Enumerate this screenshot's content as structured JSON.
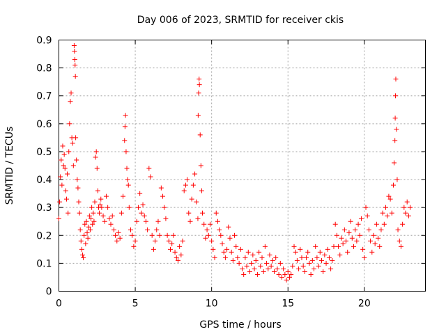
{
  "chart_data": {
    "type": "scatter",
    "title": "Day 006 of 2023, SRMTID for receiver ckis",
    "xlabel": "GPS time / hours",
    "ylabel": "SRMTID / TECUs",
    "xlim": [
      0,
      24
    ],
    "ylim": [
      0,
      0.9
    ],
    "xticks": [
      0,
      5,
      10,
      15,
      20
    ],
    "xtick_labels": [
      "0",
      "5",
      "10",
      "15",
      "20"
    ],
    "yticks": [
      0,
      0.1,
      0.2,
      0.3,
      0.4,
      0.5,
      0.6,
      0.7,
      0.8,
      0.9
    ],
    "ytick_labels": [
      "0",
      "0.1",
      "0.2",
      "0.3",
      "0.4",
      "0.5",
      "0.6",
      "0.7",
      "0.8",
      "0.9"
    ],
    "grid": true,
    "marker": "+",
    "marker_color": "#ff0000",
    "series": [
      {
        "name": "SRMTID",
        "points": [
          [
            0.0,
            0.26
          ],
          [
            0.05,
            0.32
          ],
          [
            0.1,
            0.41
          ],
          [
            0.15,
            0.47
          ],
          [
            0.2,
            0.38
          ],
          [
            0.25,
            0.52
          ],
          [
            0.3,
            0.45
          ],
          [
            0.35,
            0.49
          ],
          [
            0.4,
            0.44
          ],
          [
            0.45,
            0.36
          ],
          [
            0.5,
            0.33
          ],
          [
            0.55,
            0.42
          ],
          [
            0.6,
            0.28
          ],
          [
            0.65,
            0.5
          ],
          [
            0.7,
            0.6
          ],
          [
            0.75,
            0.68
          ],
          [
            0.8,
            0.71
          ],
          [
            0.85,
            0.55
          ],
          [
            0.9,
            0.53
          ],
          [
            0.95,
            0.45
          ],
          [
            1.0,
            0.88
          ],
          [
            1.02,
            0.86
          ],
          [
            1.04,
            0.83
          ],
          [
            1.06,
            0.81
          ],
          [
            1.08,
            0.77
          ],
          [
            1.1,
            0.55
          ],
          [
            1.15,
            0.47
          ],
          [
            1.2,
            0.4
          ],
          [
            1.25,
            0.37
          ],
          [
            1.3,
            0.32
          ],
          [
            1.35,
            0.28
          ],
          [
            1.4,
            0.22
          ],
          [
            1.45,
            0.18
          ],
          [
            1.5,
            0.15
          ],
          [
            1.55,
            0.13
          ],
          [
            1.6,
            0.12
          ],
          [
            1.65,
            0.2
          ],
          [
            1.7,
            0.24
          ],
          [
            1.75,
            0.17
          ],
          [
            1.8,
            0.25
          ],
          [
            1.85,
            0.21
          ],
          [
            1.9,
            0.19
          ],
          [
            1.95,
            0.23
          ],
          [
            2.0,
            0.27
          ],
          [
            2.05,
            0.22
          ],
          [
            2.1,
            0.26
          ],
          [
            2.15,
            0.3
          ],
          [
            2.2,
            0.24
          ],
          [
            2.25,
            0.28
          ],
          [
            2.3,
            0.25
          ],
          [
            2.35,
            0.32
          ],
          [
            2.4,
            0.48
          ],
          [
            2.45,
            0.5
          ],
          [
            2.5,
            0.44
          ],
          [
            2.55,
            0.36
          ],
          [
            2.6,
            0.3
          ],
          [
            2.65,
            0.28
          ],
          [
            2.7,
            0.31
          ],
          [
            2.75,
            0.33
          ],
          [
            2.8,
            0.3
          ],
          [
            2.9,
            0.27
          ],
          [
            3.0,
            0.25
          ],
          [
            3.1,
            0.34
          ],
          [
            3.2,
            0.3
          ],
          [
            3.3,
            0.26
          ],
          [
            3.4,
            0.24
          ],
          [
            3.5,
            0.27
          ],
          [
            3.6,
            0.22
          ],
          [
            3.7,
            0.2
          ],
          [
            3.8,
            0.18
          ],
          [
            3.9,
            0.21
          ],
          [
            4.0,
            0.19
          ],
          [
            4.1,
            0.28
          ],
          [
            4.2,
            0.34
          ],
          [
            4.3,
            0.54
          ],
          [
            4.33,
            0.59
          ],
          [
            4.36,
            0.63
          ],
          [
            4.4,
            0.5
          ],
          [
            4.45,
            0.44
          ],
          [
            4.5,
            0.4
          ],
          [
            4.55,
            0.38
          ],
          [
            4.6,
            0.3
          ],
          [
            4.7,
            0.22
          ],
          [
            4.8,
            0.2
          ],
          [
            4.9,
            0.16
          ],
          [
            5.0,
            0.18
          ],
          [
            5.1,
            0.25
          ],
          [
            5.2,
            0.3
          ],
          [
            5.3,
            0.35
          ],
          [
            5.4,
            0.28
          ],
          [
            5.5,
            0.31
          ],
          [
            5.6,
            0.27
          ],
          [
            5.7,
            0.25
          ],
          [
            5.8,
            0.22
          ],
          [
            5.9,
            0.44
          ],
          [
            6.0,
            0.41
          ],
          [
            6.1,
            0.2
          ],
          [
            6.2,
            0.15
          ],
          [
            6.3,
            0.18
          ],
          [
            6.4,
            0.22
          ],
          [
            6.5,
            0.25
          ],
          [
            6.6,
            0.2
          ],
          [
            6.7,
            0.37
          ],
          [
            6.8,
            0.34
          ],
          [
            6.9,
            0.3
          ],
          [
            7.0,
            0.26
          ],
          [
            7.1,
            0.2
          ],
          [
            7.2,
            0.18
          ],
          [
            7.3,
            0.15
          ],
          [
            7.4,
            0.17
          ],
          [
            7.5,
            0.2
          ],
          [
            7.6,
            0.14
          ],
          [
            7.7,
            0.12
          ],
          [
            7.8,
            0.11
          ],
          [
            7.9,
            0.16
          ],
          [
            8.0,
            0.13
          ],
          [
            8.1,
            0.18
          ],
          [
            8.2,
            0.36
          ],
          [
            8.3,
            0.38
          ],
          [
            8.4,
            0.4
          ],
          [
            8.5,
            0.28
          ],
          [
            8.6,
            0.25
          ],
          [
            8.7,
            0.33
          ],
          [
            8.8,
            0.38
          ],
          [
            8.9,
            0.42
          ],
          [
            9.0,
            0.32
          ],
          [
            9.1,
            0.26
          ],
          [
            9.12,
            0.63
          ],
          [
            9.15,
            0.71
          ],
          [
            9.18,
            0.76
          ],
          [
            9.2,
            0.74
          ],
          [
            9.25,
            0.56
          ],
          [
            9.3,
            0.45
          ],
          [
            9.35,
            0.36
          ],
          [
            9.4,
            0.28
          ],
          [
            9.5,
            0.24
          ],
          [
            9.6,
            0.19
          ],
          [
            9.7,
            0.22
          ],
          [
            9.8,
            0.2
          ],
          [
            9.9,
            0.24
          ],
          [
            10.0,
            0.18
          ],
          [
            10.1,
            0.15
          ],
          [
            10.2,
            0.12
          ],
          [
            10.3,
            0.28
          ],
          [
            10.4,
            0.25
          ],
          [
            10.5,
            0.22
          ],
          [
            10.6,
            0.2
          ],
          [
            10.7,
            0.17
          ],
          [
            10.8,
            0.14
          ],
          [
            10.9,
            0.12
          ],
          [
            11.0,
            0.15
          ],
          [
            11.1,
            0.23
          ],
          [
            11.2,
            0.19
          ],
          [
            11.3,
            0.14
          ],
          [
            11.4,
            0.11
          ],
          [
            11.5,
            0.2
          ],
          [
            11.6,
            0.16
          ],
          [
            11.7,
            0.12
          ],
          [
            11.8,
            0.1
          ],
          [
            11.9,
            0.15
          ],
          [
            12.0,
            0.08
          ],
          [
            12.1,
            0.06
          ],
          [
            12.2,
            0.12
          ],
          [
            12.3,
            0.09
          ],
          [
            12.4,
            0.14
          ],
          [
            12.5,
            0.07
          ],
          [
            12.6,
            0.1
          ],
          [
            12.7,
            0.13
          ],
          [
            12.8,
            0.08
          ],
          [
            12.9,
            0.11
          ],
          [
            13.0,
            0.06
          ],
          [
            13.1,
            0.14
          ],
          [
            13.2,
            0.09
          ],
          [
            13.3,
            0.12
          ],
          [
            13.4,
            0.07
          ],
          [
            13.5,
            0.16
          ],
          [
            13.6,
            0.1
          ],
          [
            13.7,
            0.08
          ],
          [
            13.8,
            0.13
          ],
          [
            13.9,
            0.09
          ],
          [
            14.0,
            0.11
          ],
          [
            14.1,
            0.07
          ],
          [
            14.2,
            0.12
          ],
          [
            14.3,
            0.08
          ],
          [
            14.4,
            0.06
          ],
          [
            14.5,
            0.1
          ],
          [
            14.6,
            0.05
          ],
          [
            14.7,
            0.08
          ],
          [
            14.8,
            0.06
          ],
          [
            14.9,
            0.04
          ],
          [
            15.0,
            0.07
          ],
          [
            15.1,
            0.05
          ],
          [
            15.2,
            0.06
          ],
          [
            15.3,
            0.09
          ],
          [
            15.4,
            0.16
          ],
          [
            15.5,
            0.14
          ],
          [
            15.6,
            0.11
          ],
          [
            15.7,
            0.08
          ],
          [
            15.8,
            0.15
          ],
          [
            15.9,
            0.12
          ],
          [
            16.0,
            0.09
          ],
          [
            16.1,
            0.07
          ],
          [
            16.2,
            0.12
          ],
          [
            16.3,
            0.14
          ],
          [
            16.4,
            0.1
          ],
          [
            16.5,
            0.06
          ],
          [
            16.6,
            0.11
          ],
          [
            16.7,
            0.08
          ],
          [
            16.8,
            0.16
          ],
          [
            16.9,
            0.12
          ],
          [
            17.0,
            0.09
          ],
          [
            17.1,
            0.14
          ],
          [
            17.2,
            0.11
          ],
          [
            17.3,
            0.07
          ],
          [
            17.4,
            0.13
          ],
          [
            17.5,
            0.1
          ],
          [
            17.6,
            0.15
          ],
          [
            17.7,
            0.12
          ],
          [
            17.8,
            0.08
          ],
          [
            17.9,
            0.11
          ],
          [
            18.0,
            0.16
          ],
          [
            18.1,
            0.24
          ],
          [
            18.2,
            0.2
          ],
          [
            18.3,
            0.16
          ],
          [
            18.4,
            0.13
          ],
          [
            18.5,
            0.19
          ],
          [
            18.6,
            0.17
          ],
          [
            18.7,
            0.22
          ],
          [
            18.8,
            0.18
          ],
          [
            18.9,
            0.14
          ],
          [
            19.0,
            0.21
          ],
          [
            19.1,
            0.25
          ],
          [
            19.2,
            0.19
          ],
          [
            19.3,
            0.16
          ],
          [
            19.4,
            0.22
          ],
          [
            19.5,
            0.18
          ],
          [
            19.6,
            0.24
          ],
          [
            19.7,
            0.2
          ],
          [
            19.8,
            0.26
          ],
          [
            19.9,
            0.15
          ],
          [
            20.0,
            0.12
          ],
          [
            20.1,
            0.3
          ],
          [
            20.2,
            0.27
          ],
          [
            20.3,
            0.22
          ],
          [
            20.4,
            0.18
          ],
          [
            20.5,
            0.14
          ],
          [
            20.6,
            0.2
          ],
          [
            20.7,
            0.17
          ],
          [
            20.8,
            0.24
          ],
          [
            20.9,
            0.19
          ],
          [
            21.0,
            0.16
          ],
          [
            21.1,
            0.22
          ],
          [
            21.2,
            0.28
          ],
          [
            21.3,
            0.24
          ],
          [
            21.4,
            0.3
          ],
          [
            21.5,
            0.27
          ],
          [
            21.6,
            0.34
          ],
          [
            21.7,
            0.33
          ],
          [
            21.8,
            0.28
          ],
          [
            21.9,
            0.38
          ],
          [
            21.95,
            0.46
          ],
          [
            22.0,
            0.54
          ],
          [
            22.02,
            0.62
          ],
          [
            22.04,
            0.7
          ],
          [
            22.06,
            0.76
          ],
          [
            22.1,
            0.58
          ],
          [
            22.15,
            0.4
          ],
          [
            22.2,
            0.22
          ],
          [
            22.3,
            0.18
          ],
          [
            22.4,
            0.16
          ],
          [
            22.5,
            0.24
          ],
          [
            22.6,
            0.3
          ],
          [
            22.7,
            0.28
          ],
          [
            22.8,
            0.32
          ],
          [
            22.9,
            0.27
          ],
          [
            23.0,
            0.3
          ]
        ]
      }
    ]
  }
}
